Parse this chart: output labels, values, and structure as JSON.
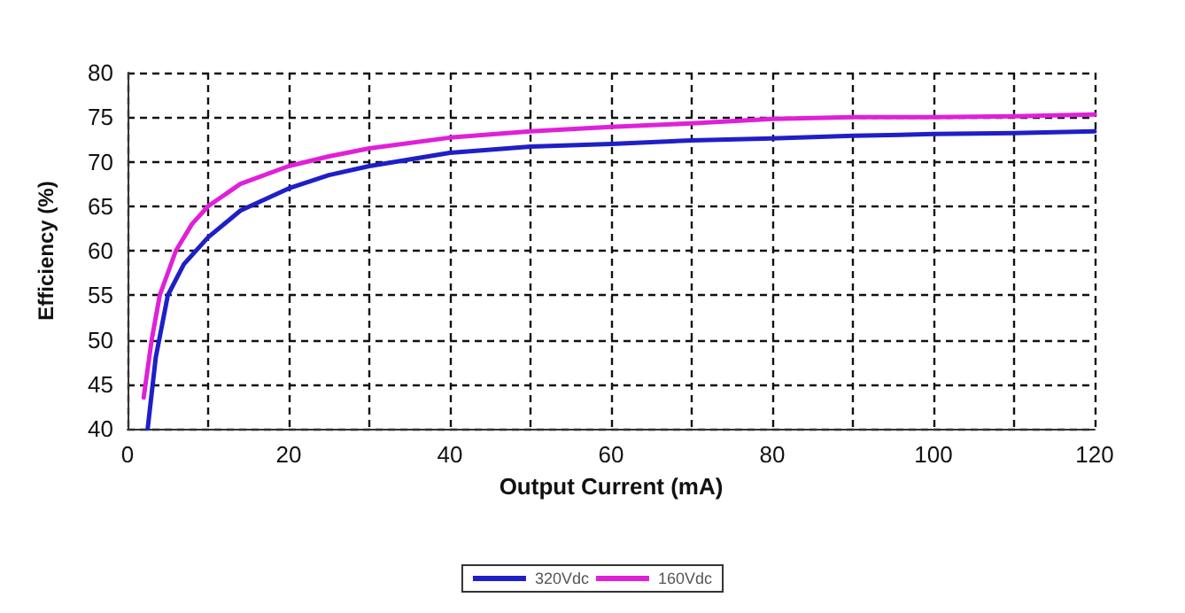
{
  "chart_data": {
    "type": "line",
    "xlabel": "Output Current (mA)",
    "ylabel": "Efficiency (%)",
    "xlim": [
      0,
      120
    ],
    "xticks": [
      0,
      {
        "value": 10,
        "label": null
      },
      20,
      {
        "value": 30,
        "label": null
      },
      40,
      {
        "value": 50,
        "label": null
      },
      60,
      {
        "value": 70,
        "label": null
      },
      80,
      {
        "value": 90,
        "label": null
      },
      100,
      {
        "value": 110,
        "label": null
      },
      120
    ],
    "ylim": [
      40,
      80
    ],
    "yticks": [
      40,
      45,
      50,
      55,
      60,
      65,
      70,
      75,
      80
    ],
    "grid": true,
    "legend": "bottom",
    "marker": "none",
    "line_style": "solid",
    "series": [
      {
        "name": "320Vdc",
        "color": "#1f1fc8",
        "x": [
          2.5,
          3.5,
          5,
          7,
          10,
          14,
          20,
          25,
          30,
          40,
          50,
          60,
          70,
          80,
          90,
          100,
          110,
          120
        ],
        "values": [
          40,
          48,
          55,
          58.5,
          61.5,
          64.5,
          67,
          68.5,
          69.5,
          71,
          71.7,
          72,
          72.4,
          72.6,
          72.9,
          73.1,
          73.2,
          73.4
        ]
      },
      {
        "name": "160Vdc",
        "color": "#e020d8",
        "x": [
          2,
          3,
          4,
          6,
          8,
          10,
          14,
          20,
          25,
          30,
          40,
          50,
          60,
          70,
          80,
          90,
          100,
          110,
          120
        ],
        "values": [
          43.5,
          50,
          55,
          60,
          63,
          65,
          67.5,
          69.5,
          70.6,
          71.5,
          72.7,
          73.4,
          73.9,
          74.3,
          74.8,
          75,
          75,
          75.1,
          75.3
        ]
      }
    ]
  }
}
